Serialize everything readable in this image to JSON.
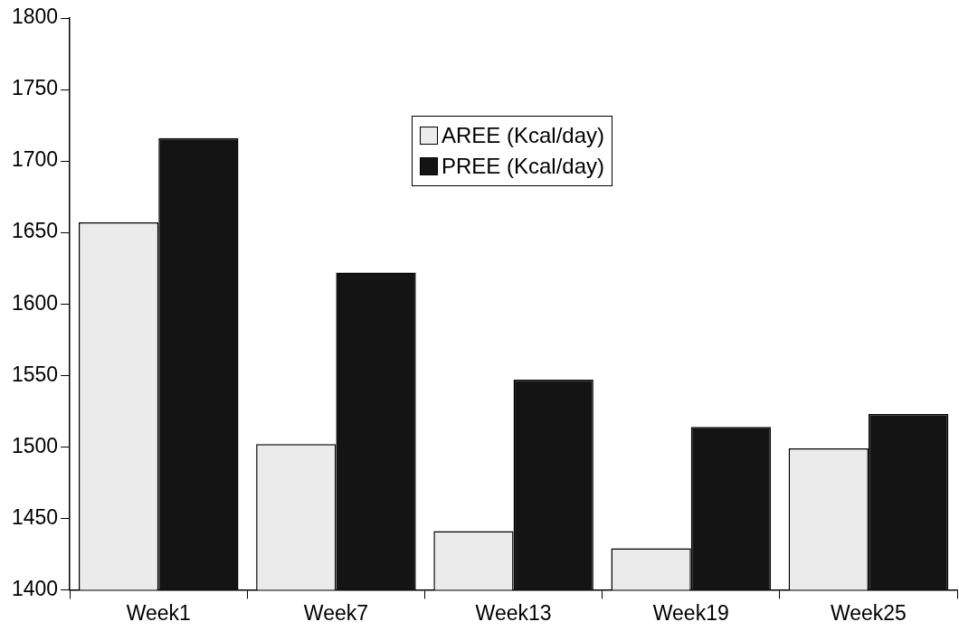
{
  "chart_data": {
    "type": "bar",
    "categories": [
      "Week1",
      "Week7",
      "Week13",
      "Week19",
      "Week25"
    ],
    "series": [
      {
        "name": "AREE (Kcal/day)",
        "color": "#ebebeb",
        "values": [
          1657,
          1502,
          1441,
          1429,
          1499
        ]
      },
      {
        "name": "PREE (Kcal/day)",
        "color": "#141414",
        "values": [
          1716,
          1622,
          1547,
          1514,
          1523
        ]
      }
    ],
    "ylim": [
      1400,
      1800
    ],
    "yticks": [
      1400,
      1450,
      1500,
      1550,
      1600,
      1650,
      1700,
      1750,
      1800
    ],
    "grid": false,
    "legend": "top"
  }
}
